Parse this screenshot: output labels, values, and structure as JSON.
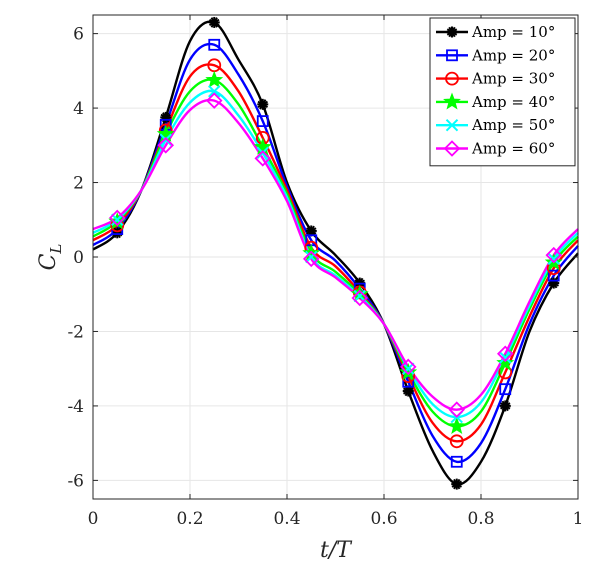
{
  "chart_data": {
    "type": "line",
    "xlabel": "t/T",
    "ylabel": "C_L",
    "xlim": [
      0,
      1
    ],
    "ylim": [
      -6.5,
      6.5
    ],
    "xticks": [
      0,
      0.2,
      0.4,
      0.6,
      0.8,
      1
    ],
    "xtick_labels": [
      "0",
      "0.2",
      "0.4",
      "0.6",
      "0.8",
      "1"
    ],
    "yticks": [
      -6,
      -4,
      -2,
      0,
      2,
      4,
      6
    ],
    "ytick_labels": [
      "-6",
      "-4",
      "-2",
      "0",
      "2",
      "4",
      "6"
    ],
    "grid": true,
    "legend_position": "top-right",
    "x": [
      0,
      0.05,
      0.1,
      0.15,
      0.2,
      0.25,
      0.3,
      0.35,
      0.4,
      0.45,
      0.5,
      0.55,
      0.6,
      0.65,
      0.7,
      0.75,
      0.8,
      0.85,
      0.9,
      0.95,
      1.0
    ],
    "marker_x": [
      0.05,
      0.15,
      0.25,
      0.35,
      0.45,
      0.55,
      0.65,
      0.75,
      0.85,
      0.95
    ],
    "series": [
      {
        "name": "Amp = 10°",
        "color": "#000000",
        "marker": "asterisk",
        "values": [
          0.2,
          0.65,
          1.8,
          3.75,
          5.8,
          6.3,
          5.3,
          4.1,
          2.0,
          0.7,
          0.05,
          -0.7,
          -1.8,
          -3.6,
          -5.2,
          -6.1,
          -5.5,
          -4.0,
          -2.0,
          -0.7,
          0.1
        ]
      },
      {
        "name": "Amp = 20°",
        "color": "#0000ff",
        "marker": "square",
        "values": [
          0.32,
          0.75,
          1.8,
          3.55,
          5.3,
          5.7,
          4.9,
          3.65,
          1.9,
          0.45,
          -0.1,
          -0.85,
          -1.8,
          -3.35,
          -4.8,
          -5.5,
          -5.0,
          -3.55,
          -1.8,
          -0.5,
          0.3
        ]
      },
      {
        "name": "Amp = 30°",
        "color": "#ff0000",
        "marker": "circle",
        "values": [
          0.45,
          0.85,
          1.8,
          3.4,
          4.85,
          5.15,
          4.45,
          3.2,
          1.8,
          0.25,
          -0.25,
          -0.95,
          -1.8,
          -3.2,
          -4.45,
          -4.95,
          -4.5,
          -3.1,
          -1.6,
          -0.3,
          0.45
        ]
      },
      {
        "name": "Amp = 40°",
        "color": "#00ff00",
        "marker": "star",
        "values": [
          0.55,
          0.95,
          1.8,
          3.3,
          4.45,
          4.75,
          4.1,
          2.95,
          1.7,
          0.1,
          -0.4,
          -1.0,
          -1.8,
          -3.1,
          -4.15,
          -4.55,
          -4.15,
          -2.85,
          -1.4,
          -0.15,
          0.55
        ]
      },
      {
        "name": "Amp = 50°",
        "color": "#00ffff",
        "marker": "x",
        "values": [
          0.65,
          1.0,
          1.8,
          3.15,
          4.15,
          4.45,
          3.8,
          2.8,
          1.6,
          0.0,
          -0.5,
          -1.05,
          -1.8,
          -3.0,
          -3.95,
          -4.3,
          -3.9,
          -2.7,
          -1.3,
          -0.05,
          0.65
        ]
      },
      {
        "name": "Amp = 60°",
        "color": "#ff00ff",
        "marker": "diamond",
        "values": [
          0.75,
          1.05,
          1.8,
          3.0,
          3.95,
          4.2,
          3.6,
          2.65,
          1.5,
          -0.05,
          -0.55,
          -1.1,
          -1.8,
          -2.95,
          -3.75,
          -4.1,
          -3.7,
          -2.6,
          -1.2,
          0.05,
          0.75
        ]
      }
    ]
  }
}
